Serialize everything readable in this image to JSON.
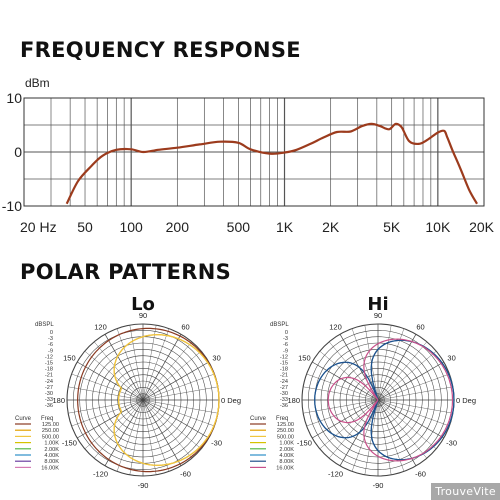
{
  "sections": {
    "frequency_title": "FREQUENCY RESPONSE",
    "polar_title": "POLAR PATTERNS"
  },
  "watermark": "TrouveVite",
  "colors": {
    "response_curve": "#9c3b1d",
    "grid": "#555555",
    "background": "#ffffff",
    "polar_grid": "#444444"
  },
  "chart_data": [
    {
      "type": "line",
      "title": "FREQUENCY RESPONSE",
      "ylabel": "dBm",
      "xscale": "log",
      "xlim": [
        20,
        20000
      ],
      "ylim": [
        -10,
        10
      ],
      "y_ticks": [
        "10",
        "0",
        "-10"
      ],
      "x_ticks": [
        {
          "label": "20 Hz",
          "value": 20
        },
        {
          "label": "50",
          "value": 50
        },
        {
          "label": "100",
          "value": 100
        },
        {
          "label": "200",
          "value": 200
        },
        {
          "label": "500",
          "value": 500
        },
        {
          "label": "1K",
          "value": 1000
        },
        {
          "label": "2K",
          "value": 2000
        },
        {
          "label": "5K",
          "value": 5000
        },
        {
          "label": "10K",
          "value": 10000
        },
        {
          "label": "20K",
          "value": 20000
        }
      ],
      "grid": true,
      "series": [
        {
          "x": [
            38,
            45,
            55,
            65,
            80,
            100,
            120,
            150,
            200,
            280,
            380,
            500,
            600,
            800,
            1000,
            1200,
            1500,
            1800,
            2200,
            2700,
            3200,
            3700,
            4200,
            4800,
            5300,
            5800,
            6500,
            7500,
            8500,
            10000,
            11000,
            11500,
            12500,
            14000,
            16000,
            18000
          ],
          "y": [
            -9.6,
            -5.4,
            -2.6,
            -0.7,
            0.4,
            0.5,
            0.0,
            0.4,
            0.8,
            1.4,
            1.9,
            1.7,
            0.5,
            -0.3,
            -0.1,
            0.4,
            1.6,
            2.7,
            3.7,
            3.8,
            4.8,
            5.2,
            4.8,
            4.2,
            5.2,
            4.6,
            2.0,
            1.5,
            2.2,
            3.6,
            3.9,
            2.8,
            0.2,
            -3.0,
            -7.0,
            -9.6
          ]
        }
      ]
    },
    {
      "type": "polar",
      "title": "Lo",
      "angle_ticks": [
        "90",
        "120",
        "150",
        "180",
        "-150",
        "-120",
        "-90",
        "-60",
        "-30",
        "0 Deg",
        "30",
        "60"
      ],
      "radial_unit": "dBSPL",
      "radial_ticks": [
        "0",
        "-3",
        "-6",
        "-9",
        "-12",
        "-15",
        "-18",
        "-21",
        "-24",
        "-27",
        "-30",
        "-33",
        "-36"
      ],
      "legend_headers": [
        "Curve",
        "Freq"
      ],
      "series": [
        {
          "name": "125.00",
          "color": "#8a3a22",
          "pattern": "omni-cardioid"
        },
        {
          "name": "250.00",
          "color": "#e3a000",
          "pattern": "cardioid"
        },
        {
          "name": "500.00",
          "color": "#f0c640",
          "pattern": "cardioid"
        },
        {
          "name": "1.00K",
          "color": "#d6c200"
        },
        {
          "name": "2.00K",
          "color": "#55b848"
        },
        {
          "name": "4.00K",
          "color": "#2d8fc7"
        },
        {
          "name": "8.00K",
          "color": "#6a3fa0"
        },
        {
          "name": "16.00K",
          "color": "#d67bb3"
        }
      ]
    },
    {
      "type": "polar",
      "title": "Hi",
      "angle_ticks": [
        "90",
        "120",
        "150",
        "180",
        "-150",
        "-120",
        "-90",
        "-60",
        "-30",
        "0 Deg",
        "30",
        "60"
      ],
      "radial_unit": "dBSPL",
      "radial_ticks": [
        "0",
        "-3",
        "-6",
        "-9",
        "-12",
        "-15",
        "-18",
        "-21",
        "-24",
        "-27",
        "-30",
        "-33",
        "-36"
      ],
      "legend_headers": [
        "Curve",
        "Freq"
      ],
      "series": [
        {
          "name": "125.00",
          "color": "#8a3a22"
        },
        {
          "name": "250.00",
          "color": "#e3a000"
        },
        {
          "name": "500.00",
          "color": "#f0c640"
        },
        {
          "name": "1.00K",
          "color": "#d6c200"
        },
        {
          "name": "2.00K",
          "color": "#55b848"
        },
        {
          "name": "4.00K",
          "color": "#2d8fc7",
          "pattern": "hypercardioid"
        },
        {
          "name": "8.00K",
          "color": "#1f4f8a",
          "pattern": "hypercardioid"
        },
        {
          "name": "16.00K",
          "color": "#c8508a",
          "pattern": "supercardioid"
        }
      ]
    }
  ]
}
